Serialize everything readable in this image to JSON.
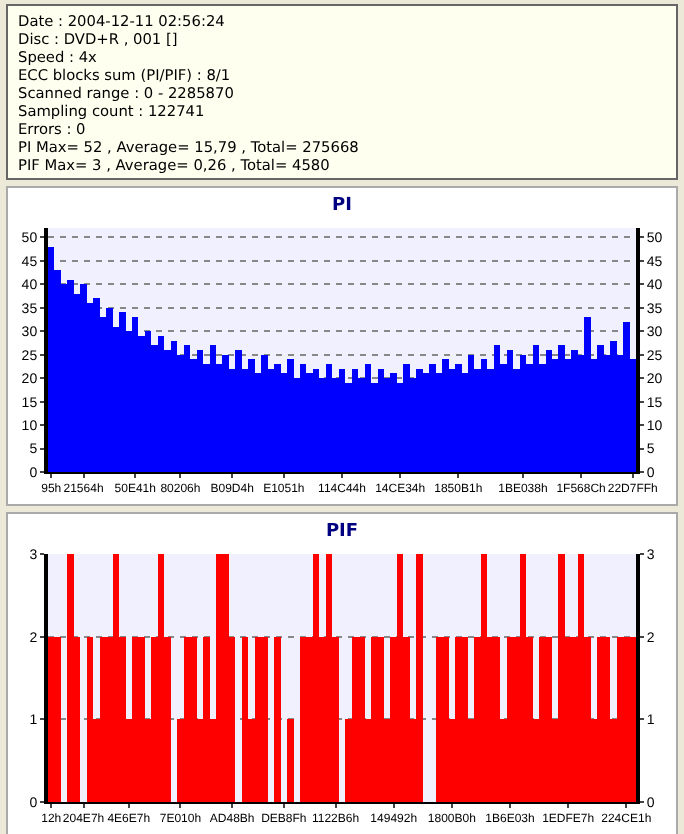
{
  "chart_data": [
    {
      "type": "other",
      "annotations": [
        "Date : 2004-12-11 02:56:24",
        "Disc : DVD+R , 001 []",
        "Speed : 4x",
        "ECC blocks sum (PI/PIF) : 8/1",
        "Scanned range : 0 - 2285870",
        "Sampling count : 122741",
        "Errors : 0",
        "PI Max= 52 , Average= 15,79 , Total= 275668",
        "PIF Max= 3 , Average= 0,26 , Total= 4580"
      ]
    },
    {
      "type": "bar",
      "title": "PI",
      "color": "#0000ff",
      "grid": "y",
      "categories": [
        "95h",
        null,
        null,
        null,
        null,
        "21564h",
        null,
        null,
        null,
        null,
        null,
        null,
        null,
        "50E41h",
        null,
        null,
        null,
        null,
        null,
        null,
        "80206h",
        null,
        null,
        null,
        null,
        null,
        null,
        null,
        "B09D4h",
        null,
        null,
        null,
        null,
        null,
        null,
        null,
        "E1051h",
        null,
        null,
        null,
        null,
        null,
        null,
        null,
        null,
        "114C44h",
        null,
        null,
        null,
        null,
        null,
        null,
        null,
        null,
        "14CE34h",
        null,
        null,
        null,
        null,
        null,
        null,
        null,
        null,
        "1850B1h",
        null,
        null,
        null,
        null,
        null,
        null,
        null,
        null,
        null,
        "1BE038h",
        null,
        null,
        null,
        null,
        null,
        null,
        null,
        null,
        "1F568Ch",
        null,
        null,
        null,
        null,
        null,
        null,
        null,
        "22D7FFh"
      ],
      "values": [
        48,
        43,
        40,
        41,
        38,
        40,
        36,
        37,
        33,
        35,
        31,
        34,
        30,
        33,
        29,
        30,
        27,
        29,
        26,
        28,
        25,
        27,
        24,
        26,
        23,
        27,
        23,
        25,
        22,
        26,
        22,
        24,
        21,
        25,
        22,
        23,
        21,
        24,
        20,
        23,
        21,
        22,
        20,
        23,
        20,
        22,
        19,
        22,
        20,
        23,
        19,
        22,
        20,
        21,
        19,
        23,
        20,
        22,
        21,
        23,
        21,
        24,
        22,
        23,
        21,
        25,
        22,
        24,
        22,
        27,
        23,
        26,
        22,
        25,
        23,
        27,
        23,
        26,
        24,
        27,
        24,
        26,
        25,
        33,
        24,
        27,
        25,
        28,
        25,
        32,
        24
      ],
      "ylim": [
        0,
        52
      ],
      "yticks": [
        0,
        5,
        10,
        15,
        20,
        25,
        30,
        35,
        40,
        45,
        50
      ],
      "y2lim": [
        0,
        52
      ],
      "y2ticks": [
        0,
        5,
        10,
        15,
        20,
        25,
        30,
        35,
        40,
        45,
        50
      ]
    },
    {
      "type": "bar",
      "title": "PIF",
      "color": "#ff0000",
      "grid": "y",
      "categories": [
        "12h",
        null,
        null,
        null,
        null,
        "204E7h",
        null,
        null,
        null,
        null,
        null,
        null,
        "4E6E7h",
        null,
        null,
        null,
        null,
        null,
        null,
        null,
        "7E010h",
        null,
        null,
        null,
        null,
        null,
        null,
        null,
        "AD48Bh",
        null,
        null,
        null,
        null,
        null,
        null,
        null,
        "DEB8Fh",
        null,
        null,
        null,
        null,
        null,
        null,
        null,
        "1122B6h",
        null,
        null,
        null,
        null,
        null,
        null,
        null,
        null,
        "149492h",
        null,
        null,
        null,
        null,
        null,
        null,
        null,
        null,
        "1800B0h",
        null,
        null,
        null,
        null,
        null,
        null,
        null,
        null,
        "1B6E03h",
        null,
        null,
        null,
        null,
        null,
        null,
        null,
        null,
        "1EDFE7h",
        null,
        null,
        null,
        null,
        null,
        null,
        null,
        null,
        "224CE1h",
        null
      ],
      "values": [
        2,
        2,
        0,
        3,
        2,
        0,
        2,
        1,
        2,
        2,
        3,
        2,
        1,
        2,
        2,
        1,
        2,
        3,
        2,
        0,
        1,
        2,
        2,
        1,
        2,
        1,
        3,
        3,
        2,
        0,
        2,
        1,
        2,
        2,
        0,
        2,
        0,
        1,
        0,
        2,
        2,
        3,
        2,
        3,
        2,
        0,
        1,
        2,
        2,
        1,
        2,
        2,
        1,
        2,
        3,
        2,
        1,
        3,
        0,
        0,
        2,
        2,
        1,
        2,
        2,
        1,
        2,
        3,
        2,
        2,
        1,
        2,
        2,
        3,
        2,
        1,
        2,
        2,
        1,
        3,
        2,
        2,
        3,
        2,
        1,
        2,
        2,
        1,
        2,
        2,
        2
      ],
      "ylim": [
        0,
        3
      ],
      "yticks": [
        0,
        1,
        2,
        3
      ],
      "y2lim": [
        0,
        3
      ],
      "y2ticks": [
        0,
        1,
        2,
        3
      ]
    }
  ]
}
